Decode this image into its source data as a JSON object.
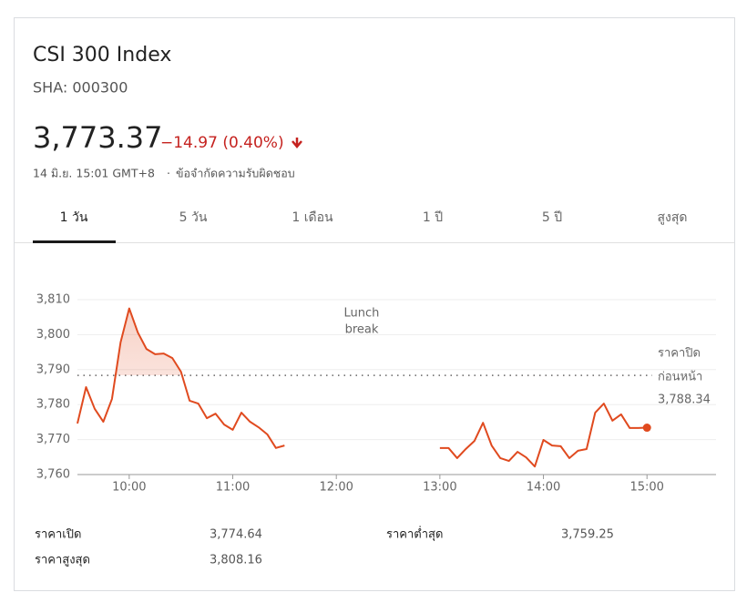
{
  "header": {
    "title": "CSI 300 Index",
    "exchange": "SHA: 000300"
  },
  "quote": {
    "price": "3,773.37",
    "change": "−14.97 (0.40%)",
    "timestamp": "14 มิ.ย. 15:01 GMT+8",
    "disclaimer": "ข้อจำกัดความรับผิดชอบ"
  },
  "tabs": [
    "1 วัน",
    "5 วัน",
    "1 เดือน",
    "1 ปี",
    "5 ปี",
    "สูงสุด"
  ],
  "chart_data": {
    "type": "line",
    "x": [
      570,
      575,
      580,
      585,
      590,
      595,
      600,
      605,
      610,
      615,
      620,
      625,
      630,
      635,
      640,
      645,
      650,
      655,
      660,
      665,
      670,
      675,
      680,
      685,
      690,
      735,
      780,
      785,
      790,
      795,
      800,
      805,
      810,
      815,
      820,
      825,
      830,
      835,
      840,
      845,
      850,
      855,
      860,
      865,
      870,
      875,
      880,
      885,
      890,
      895,
      900
    ],
    "series": [
      {
        "color": "#e04a1f",
        "values": [
          3774.6,
          3785.0,
          3778.8,
          3775.1,
          3781.6,
          3797.8,
          3807.5,
          3800.6,
          3795.9,
          3794.4,
          3794.6,
          3793.3,
          3789.4,
          3781.1,
          3780.3,
          3776.1,
          3777.4,
          3774.3,
          3772.8,
          3777.7,
          3775.1,
          3773.5,
          3771.5,
          3767.6,
          3768.3,
          null,
          3767.6,
          3767.6,
          3764.7,
          3767.3,
          3769.6,
          3774.8,
          3768.3,
          3764.7,
          3763.9,
          3766.5,
          3764.9,
          3762.3,
          3769.9,
          3768.3,
          3768.1,
          3764.7,
          3766.8,
          3767.3,
          3777.7,
          3780.3,
          3775.4,
          3777.2,
          3773.3,
          3773.3,
          3773.4
        ]
      }
    ],
    "xlim": [
      570,
      940
    ],
    "xticks": [
      {
        "value": 600,
        "label": "10:00"
      },
      {
        "value": 660,
        "label": "11:00"
      },
      {
        "value": 720,
        "label": "12:00"
      },
      {
        "value": 780,
        "label": "13:00"
      },
      {
        "value": 840,
        "label": "14:00"
      },
      {
        "value": 900,
        "label": "15:00"
      }
    ],
    "ylim": [
      3760,
      3810
    ],
    "yticks": [
      {
        "value": 3760,
        "label": "3,760"
      },
      {
        "value": 3770,
        "label": "3,770"
      },
      {
        "value": 3780,
        "label": "3,780"
      },
      {
        "value": 3790,
        "label": "3,790"
      },
      {
        "value": 3800,
        "label": "3,800"
      },
      {
        "value": 3810,
        "label": "3,810"
      }
    ],
    "grid": true,
    "annotation": [
      "Lunch",
      "break"
    ],
    "reference_line": {
      "label": [
        "ราคาปิด",
        "ก่อนหน้า"
      ],
      "value": 3788.34,
      "value_label": "3,788.34"
    }
  },
  "stats": [
    {
      "label": "ราคาเปิด",
      "value": "3,774.64"
    },
    {
      "label": "ราคาสูงสุด",
      "value": "3,808.16"
    },
    {
      "label": "ราคาต่ำสุด",
      "value": "3,759.25"
    }
  ]
}
